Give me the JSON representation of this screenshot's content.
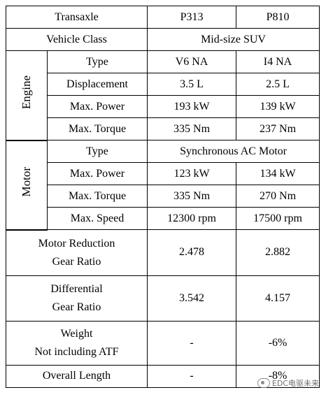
{
  "header": {
    "col_transaxle": "Transaxle",
    "col_a": "P313",
    "col_b": "P810"
  },
  "vehicle_class": {
    "label": "Vehicle Class",
    "value": "Mid-size SUV"
  },
  "engine": {
    "group": "Engine",
    "rows": [
      {
        "label": "Type",
        "a": "V6 NA",
        "b": "I4 NA"
      },
      {
        "label": "Displacement",
        "a": "3.5 L",
        "b": "2.5 L"
      },
      {
        "label": "Max. Power",
        "a": "193 kW",
        "b": "139 kW"
      },
      {
        "label": "Max. Torque",
        "a": "335 Nm",
        "b": "237 Nm"
      }
    ]
  },
  "motor": {
    "group": "Motor",
    "type": {
      "label": "Type",
      "value": "Synchronous AC Motor"
    },
    "rows": [
      {
        "label": "Max. Power",
        "a": "123 kW",
        "b": "134 kW"
      },
      {
        "label": "Max. Torque",
        "a": "335 Nm",
        "b": "270 Nm"
      },
      {
        "label": "Max. Speed",
        "a": "12300 rpm",
        "b": "17500 rpm"
      }
    ]
  },
  "motor_reduction": {
    "line1": "Motor Reduction",
    "line2": "Gear Ratio",
    "a": "2.478",
    "b": "2.882"
  },
  "differential": {
    "line1": "Differential",
    "line2": "Gear Ratio",
    "a": "3.542",
    "b": "4.157"
  },
  "weight": {
    "line1": "Weight",
    "line2": "Not including ATF",
    "a": "-",
    "b": "-6%"
  },
  "overall_length": {
    "label": "Overall Length",
    "a": "-",
    "b": "-8%"
  },
  "watermark": {
    "text": "EDC电驱未来"
  }
}
